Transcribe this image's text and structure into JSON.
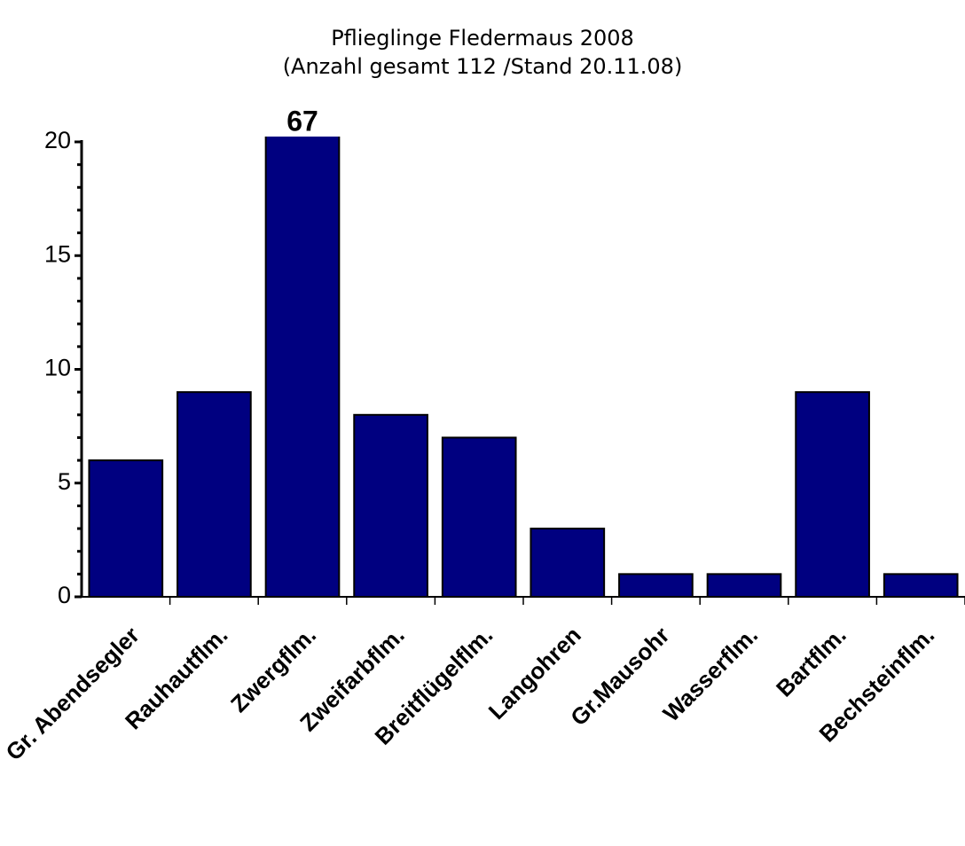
{
  "chart_data": {
    "type": "bar",
    "title": "Pflieglinge Fledermaus 2008",
    "subtitle": "(Anzahl gesamt 112 /Stand 20.11.08)",
    "categories": [
      "Gr. Abendsegler",
      "Rauhautflm.",
      "Zwergflm.",
      "Zweifarbflm.",
      "Breitflügelflm.",
      "Langohren",
      "Gr.Mausohr",
      "Wasserflm.",
      "Bartflm.",
      "Bechsteinflm."
    ],
    "values": [
      6,
      9,
      67,
      8,
      7,
      3,
      1,
      1,
      9,
      1
    ],
    "value_labels": [
      null,
      null,
      "67",
      null,
      null,
      null,
      null,
      null,
      null,
      null
    ],
    "color": "#000080",
    "ylim": [
      0,
      20
    ],
    "yticks": [
      0,
      5,
      10,
      15,
      20
    ],
    "minor_yticks": [
      1,
      2,
      3,
      4,
      6,
      7,
      8,
      9,
      11,
      12,
      13,
      14,
      16,
      17,
      18,
      19
    ],
    "grid": false
  }
}
